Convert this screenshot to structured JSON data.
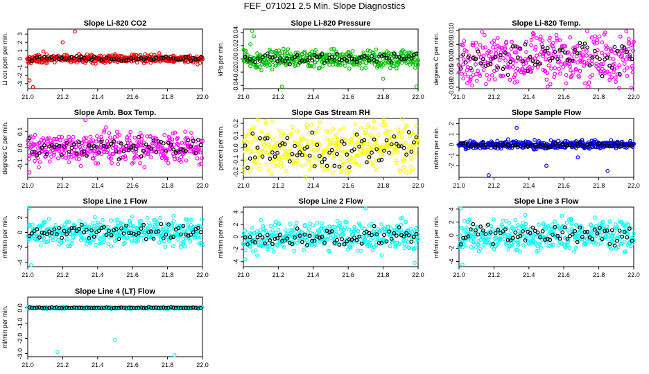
{
  "figure_title": "FEF_071021  2.5 Min. Slope Diagnostics",
  "colors": {
    "axis": "#000000",
    "mean_points": "#000000"
  },
  "chart_data": [
    {
      "type": "scatter",
      "title": "Slope Li-820 CO2",
      "ylabel": "Li cor ppm per min.",
      "xlim": [
        21.0,
        22.0
      ],
      "ylim": [
        -3.6,
        3.6
      ],
      "xticks": [
        "21.0",
        "21.2",
        "21.4",
        "21.6",
        "21.8",
        "22.0"
      ],
      "yticks": [
        "-3",
        "-2",
        "-1",
        "0",
        "1",
        "2",
        "3"
      ],
      "color": "#ff0000",
      "spread": 0.45,
      "outliers": [
        [
          21.03,
          -3.4
        ],
        [
          21.01,
          -2.6
        ],
        [
          21.2,
          2.0
        ],
        [
          21.27,
          3.3
        ],
        [
          21.09,
          0.9
        ]
      ]
    },
    {
      "type": "scatter",
      "title": "Slope Li-820 Pressure",
      "ylabel": "kPa per min.",
      "xlim": [
        21.0,
        22.0
      ],
      "ylim": [
        -0.045,
        0.045
      ],
      "xticks": [
        "21.0",
        "21.2",
        "21.4",
        "21.6",
        "21.8",
        "22.0"
      ],
      "yticks": [
        "-0.04",
        "-0.02",
        "0.00",
        "0.02",
        "0.04"
      ],
      "color": "#00c000",
      "spread": 0.012,
      "outliers": [
        [
          21.05,
          0.042
        ],
        [
          21.06,
          0.034
        ],
        [
          21.04,
          0.022
        ],
        [
          21.22,
          -0.042
        ],
        [
          21.99,
          -0.042
        ],
        [
          21.8,
          -0.03
        ]
      ]
    },
    {
      "type": "scatter",
      "title": "Slope Li-820 Temp.",
      "ylabel": "degrees C per min.",
      "xlim": [
        21.0,
        22.0
      ],
      "ylim": [
        -0.0105,
        0.0105
      ],
      "xticks": [
        "21.0",
        "21.2",
        "21.4",
        "21.6",
        "21.8",
        "22.0"
      ],
      "yticks": [
        "-0.010",
        "-0.005",
        "0.000",
        "0.005",
        "0.010"
      ],
      "color": "#ff00ff",
      "spread": 0.0085,
      "outliers": []
    },
    {
      "type": "scatter",
      "title": "Slope Amb. Box Temp.",
      "ylabel": "degrees C per min.",
      "xlim": [
        21.0,
        22.0
      ],
      "ylim": [
        -0.18,
        0.18
      ],
      "xticks": [
        "21.0",
        "21.2",
        "21.4",
        "21.6",
        "21.8",
        "22.0"
      ],
      "yticks": [
        "-0.1",
        "0.0",
        "0.1"
      ],
      "color": "#ff00ff",
      "spread": 0.08,
      "outliers": [
        [
          21.33,
          0.17
        ],
        [
          21.01,
          -0.15
        ]
      ]
    },
    {
      "type": "scatter",
      "title": "Slope Gas Stream RH",
      "ylabel": "percent per min.",
      "xlim": [
        21.0,
        22.0
      ],
      "ylim": [
        -0.24,
        0.24
      ],
      "xticks": [
        "21.0",
        "21.2",
        "21.4",
        "21.6",
        "21.8",
        "22.0"
      ],
      "yticks": [
        "-0.2",
        "-0.1",
        "0.0",
        "0.1",
        "0.2"
      ],
      "color": "#ffff00",
      "spread": 0.19,
      "outliers": []
    },
    {
      "type": "scatter",
      "title": "Slope Sample Flow",
      "ylabel": "ml/min per min.",
      "xlim": [
        21.0,
        22.0
      ],
      "ylim": [
        -3.1,
        2.5
      ],
      "xticks": [
        "21.0",
        "21.2",
        "21.4",
        "21.6",
        "21.8",
        "22.0"
      ],
      "yticks": [
        "-2",
        "-1",
        "0",
        "1",
        "2"
      ],
      "color": "#0000ff",
      "spread": 0.35,
      "outliers": [
        [
          21.17,
          -2.9
        ],
        [
          21.5,
          -2.0
        ],
        [
          21.68,
          -1.2
        ],
        [
          21.85,
          -2.5
        ],
        [
          21.33,
          1.6
        ]
      ]
    },
    {
      "type": "scatter",
      "title": "Slope Line 1 Flow",
      "ylabel": "ml/min per min.",
      "xlim": [
        21.0,
        22.0
      ],
      "ylim": [
        -4.6,
        3.4
      ],
      "xticks": [
        "21.0",
        "21.2",
        "21.4",
        "21.6",
        "21.8",
        "22.0"
      ],
      "yticks": [
        "-4",
        "-2",
        "0",
        "2"
      ],
      "color": "#00ffff",
      "spread": 1.6,
      "outliers": [
        [
          21.02,
          -4.4
        ],
        [
          21.01,
          3.3
        ]
      ]
    },
    {
      "type": "scatter",
      "title": "Slope Line 2 Flow",
      "ylabel": "ml/min per min.",
      "xlim": [
        21.0,
        22.0
      ],
      "ylim": [
        -4.8,
        4.8
      ],
      "xticks": [
        "21.0",
        "21.2",
        "21.4",
        "21.6",
        "21.8",
        "22.0"
      ],
      "yticks": [
        "-4",
        "-2",
        "0",
        "2",
        "4"
      ],
      "color": "#00ffff",
      "spread": 2.0,
      "outliers": [
        [
          21.98,
          -4.2
        ],
        [
          21.7,
          4.6
        ],
        [
          21.01,
          -3.6
        ]
      ]
    },
    {
      "type": "scatter",
      "title": "Slope Line 3 Flow",
      "ylabel": "ml/min per min.",
      "xlim": [
        21.0,
        22.0
      ],
      "ylim": [
        -4.8,
        4.3
      ],
      "xticks": [
        "21.0",
        "21.2",
        "21.4",
        "21.6",
        "21.8",
        "22.0"
      ],
      "yticks": [
        "-4",
        "-2",
        "0",
        "2",
        "4"
      ],
      "color": "#00ffff",
      "spread": 2.0,
      "outliers": [
        [
          21.02,
          -4.5
        ],
        [
          21.01,
          4.1
        ]
      ]
    },
    {
      "type": "scatter",
      "title": "Slope Line 4 (LT) Flow",
      "ylabel": "ml/min per min.",
      "xlim": [
        21.0,
        22.0
      ],
      "ylim": [
        -3.2,
        0.7
      ],
      "xticks": [
        "21.0",
        "21.2",
        "21.4",
        "21.6",
        "21.8",
        "22.0"
      ],
      "yticks": [
        "-3.0",
        "-2.0",
        "-1.0",
        "0.0"
      ],
      "color": "#00ffff",
      "spread": 0.05,
      "outliers": [
        [
          21.17,
          -2.9
        ],
        [
          21.5,
          -2.1
        ],
        [
          21.84,
          -3.1
        ]
      ]
    }
  ]
}
